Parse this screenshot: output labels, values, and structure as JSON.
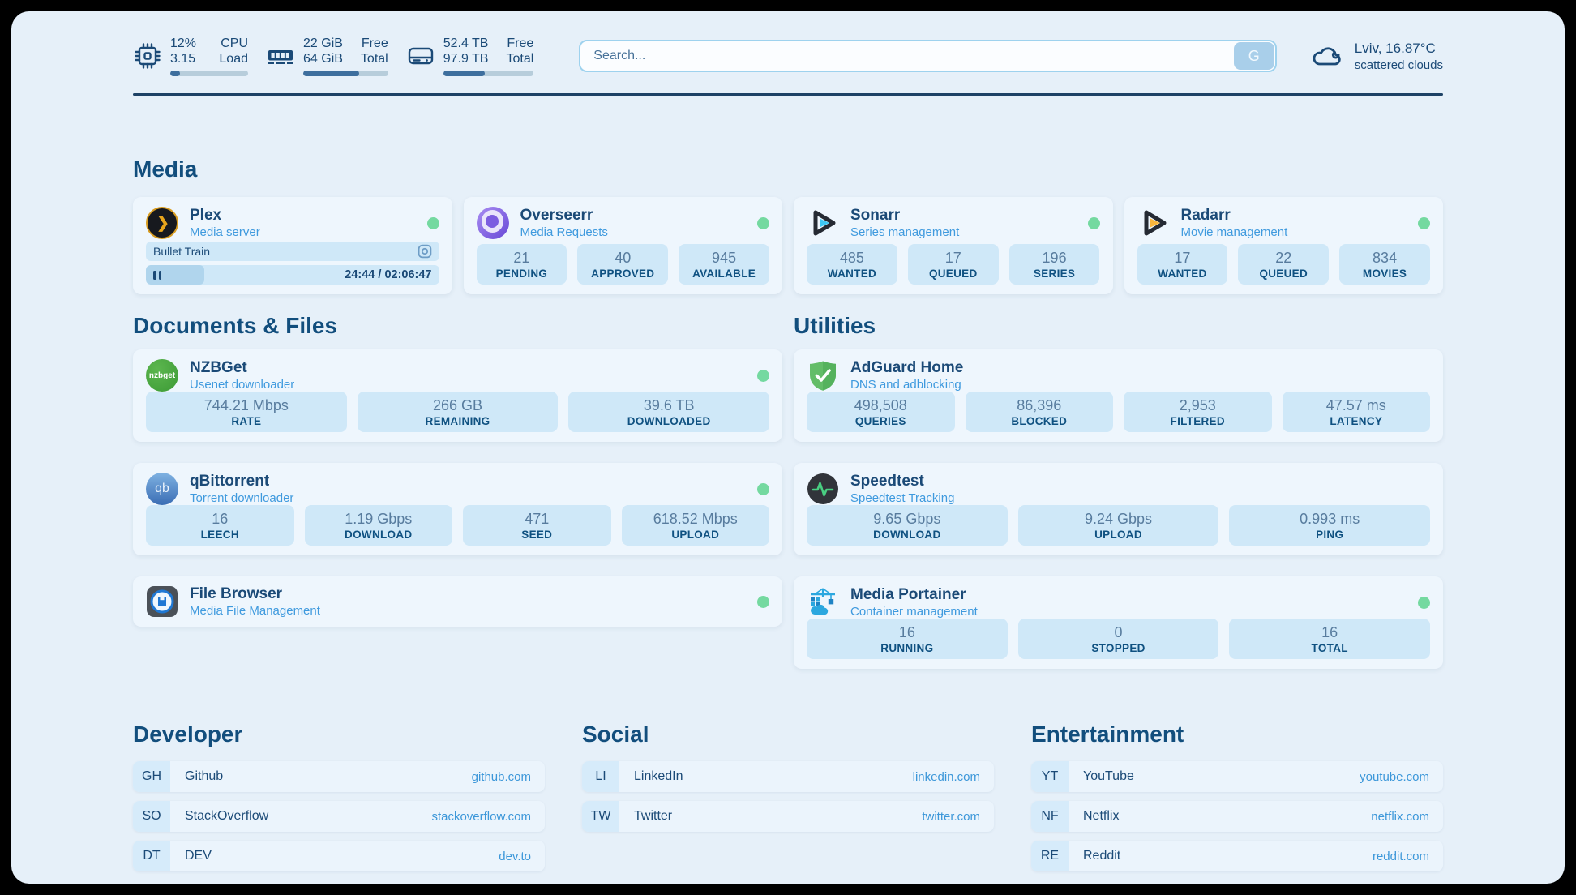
{
  "header": {
    "resources": [
      {
        "stat1": "12%",
        "stat2": "3.15",
        "label1": "CPU",
        "label2": "Load",
        "progress": 12
      },
      {
        "stat1": "22 GiB",
        "stat2": "64 GiB",
        "label1": "Free",
        "label2": "Total",
        "progress": 66
      },
      {
        "stat1": "52.4 TB",
        "stat2": "97.9 TB",
        "label1": "Free",
        "label2": "Total",
        "progress": 46
      }
    ],
    "search": {
      "placeholder": "Search...",
      "button_label": "G"
    },
    "weather": {
      "location": "Lviv, 16.87°C",
      "condition": "scattered clouds"
    }
  },
  "sections": {
    "media": "Media",
    "documents": "Documents & Files",
    "utilities": "Utilities",
    "developer": "Developer",
    "social": "Social",
    "entertainment": "Entertainment"
  },
  "services": {
    "plex": {
      "title": "Plex",
      "subtitle": "Media server",
      "now_playing": "Bullet Train",
      "time": "24:44 / 02:06:47",
      "progress": 20
    },
    "overseerr": {
      "title": "Overseerr",
      "subtitle": "Media Requests",
      "stats": [
        {
          "value": "21",
          "label": "PENDING"
        },
        {
          "value": "40",
          "label": "APPROVED"
        },
        {
          "value": "945",
          "label": "AVAILABLE"
        }
      ]
    },
    "sonarr": {
      "title": "Sonarr",
      "subtitle": "Series management",
      "stats": [
        {
          "value": "485",
          "label": "WANTED"
        },
        {
          "value": "17",
          "label": "QUEUED"
        },
        {
          "value": "196",
          "label": "SERIES"
        }
      ]
    },
    "radarr": {
      "title": "Radarr",
      "subtitle": "Movie management",
      "stats": [
        {
          "value": "17",
          "label": "WANTED"
        },
        {
          "value": "22",
          "label": "QUEUED"
        },
        {
          "value": "834",
          "label": "MOVIES"
        }
      ]
    },
    "nzbget": {
      "title": "NZBGet",
      "subtitle": "Usenet downloader",
      "stats": [
        {
          "value": "744.21 Mbps",
          "label": "RATE"
        },
        {
          "value": "266 GB",
          "label": "REMAINING"
        },
        {
          "value": "39.6 TB",
          "label": "DOWNLOADED"
        }
      ]
    },
    "qbittorrent": {
      "title": "qBittorrent",
      "subtitle": "Torrent downloader",
      "stats": [
        {
          "value": "16",
          "label": "LEECH"
        },
        {
          "value": "1.19 Gbps",
          "label": "DOWNLOAD"
        },
        {
          "value": "471",
          "label": "SEED"
        },
        {
          "value": "618.52 Mbps",
          "label": "UPLOAD"
        }
      ]
    },
    "filebrowser": {
      "title": "File Browser",
      "subtitle": "Media File Management"
    },
    "adguard": {
      "title": "AdGuard Home",
      "subtitle": "DNS and adblocking",
      "stats": [
        {
          "value": "498,508",
          "label": "QUERIES"
        },
        {
          "value": "86,396",
          "label": "BLOCKED"
        },
        {
          "value": "2,953",
          "label": "FILTERED"
        },
        {
          "value": "47.57 ms",
          "label": "LATENCY"
        }
      ]
    },
    "speedtest": {
      "title": "Speedtest",
      "subtitle": "Speedtest Tracking",
      "stats": [
        {
          "value": "9.65 Gbps",
          "label": "DOWNLOAD"
        },
        {
          "value": "9.24 Gbps",
          "label": "UPLOAD"
        },
        {
          "value": "0.993 ms",
          "label": "PING"
        }
      ]
    },
    "portainer": {
      "title": "Media Portainer",
      "subtitle": "Container management",
      "stats": [
        {
          "value": "16",
          "label": "RUNNING"
        },
        {
          "value": "0",
          "label": "STOPPED"
        },
        {
          "value": "16",
          "label": "TOTAL"
        }
      ]
    }
  },
  "icon_text": {
    "nzbget": "nzbget",
    "qbittorrent": "qb"
  },
  "bookmarks": {
    "developer": [
      {
        "abbr": "GH",
        "name": "Github",
        "url": "github.com"
      },
      {
        "abbr": "SO",
        "name": "StackOverflow",
        "url": "stackoverflow.com"
      },
      {
        "abbr": "DT",
        "name": "DEV",
        "url": "dev.to"
      }
    ],
    "social": [
      {
        "abbr": "LI",
        "name": "LinkedIn",
        "url": "linkedin.com"
      },
      {
        "abbr": "TW",
        "name": "Twitter",
        "url": "twitter.com"
      }
    ],
    "entertainment": [
      {
        "abbr": "YT",
        "name": "YouTube",
        "url": "youtube.com"
      },
      {
        "abbr": "NF",
        "name": "Netflix",
        "url": "netflix.com"
      },
      {
        "abbr": "RE",
        "name": "Reddit",
        "url": "reddit.com"
      }
    ]
  },
  "colors": {
    "status_online": "#74d9a0",
    "accent_blue": "#3f9ade",
    "navy": "#1b4a77"
  }
}
